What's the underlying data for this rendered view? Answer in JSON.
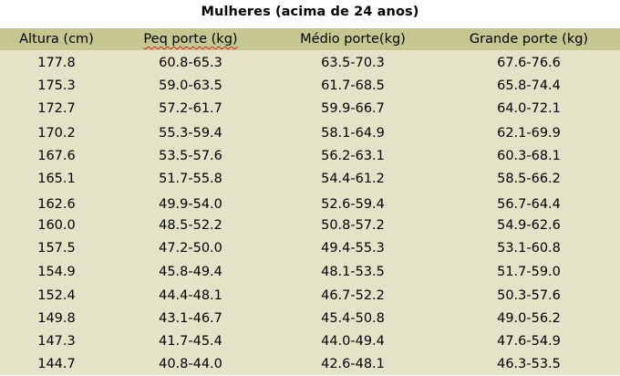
{
  "title": "Mulheres (acima de 24 anos)",
  "table": {
    "headers": [
      "Altura (cm)",
      "Peq porte (kg)",
      "Médio porte(kg)",
      "Grande porte (kg)"
    ],
    "rows": [
      [
        "177.8",
        "60.8-65.3",
        "63.5-70.3",
        "67.6-76.6"
      ],
      [
        "175.3",
        "59.0-63.5",
        "61.7-68.5",
        "65.8-74.4"
      ],
      [
        "172.7",
        "57.2-61.7",
        "59.9-66.7",
        "64.0-72.1"
      ],
      [
        "170.2",
        "55.3-59.4",
        "58.1-64.9",
        "62.1-69.9"
      ],
      [
        "167.6",
        "53.5-57.6",
        "56.2-63.1",
        "60.3-68.1"
      ],
      [
        "165.1",
        "51.7-55.8",
        "54.4-61.2",
        "58.5-66.2"
      ],
      [
        "162.6",
        "49.9-54.0",
        "52.6-59.4",
        "56.7-64.4"
      ],
      [
        "160.0",
        "48.5-52.2",
        "50.8-57.2",
        "54.9-62.6"
      ],
      [
        "157.5",
        "47.2-50.0",
        "49.4-55.3",
        "53.1-60.8"
      ],
      [
        "154.9",
        "45.8-49.4",
        "48.1-53.5",
        "51.7-59.0"
      ],
      [
        "152.4",
        "44.4-48.1",
        "46.7-52.2",
        "50.3-57.6"
      ],
      [
        "149.8",
        "43.1-46.7",
        "45.4-50.8",
        "49.0-56.2"
      ],
      [
        "147.3",
        "41.7-45.4",
        "44.0-49.4",
        "47.6-54.9"
      ],
      [
        "144.7",
        "40.8-44.0",
        "42.6-48.1",
        "46.3-53.5"
      ]
    ]
  },
  "colors": {
    "header_background": "#c6c691",
    "body_background": "#e3e3c8",
    "spellcheck_underline": "#d02020"
  }
}
